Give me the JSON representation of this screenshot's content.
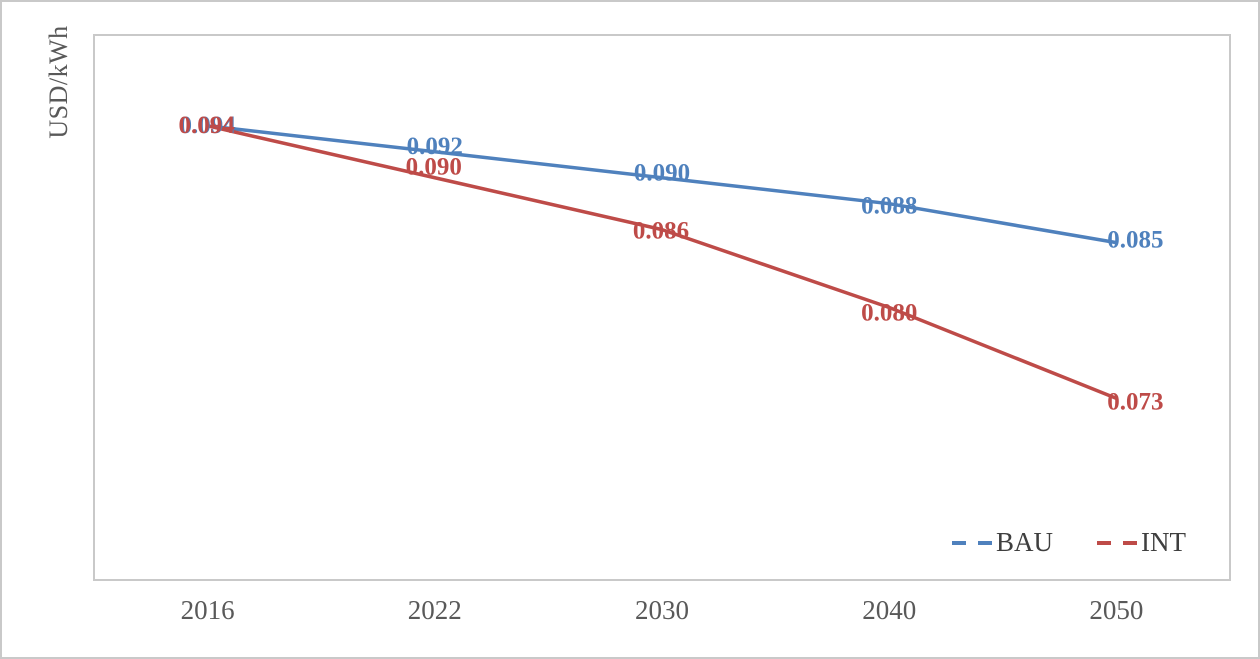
{
  "chart_data": {
    "type": "line",
    "title": "",
    "ylabel": "USD/kWh",
    "xlabel": "",
    "categories": [
      "2016",
      "2022",
      "2030",
      "2040",
      "2050"
    ],
    "series": [
      {
        "name": "BAU",
        "color": "#4f81bd",
        "values": [
          0.094,
          0.092,
          0.09,
          0.088,
          0.085
        ],
        "labels": [
          "0.094",
          "0.092",
          "0.090",
          "0.088",
          "0.085"
        ],
        "label_offsets": [
          [
            0,
            -2
          ],
          [
            0,
            -7
          ],
          [
            0,
            -6
          ],
          [
            0,
            1
          ],
          [
            19,
            -4
          ]
        ]
      },
      {
        "name": "INT",
        "color": "#be4b48",
        "values": [
          0.094,
          0.09,
          0.086,
          0.08,
          0.073
        ],
        "labels": [
          "0.094",
          "0.090",
          "0.086",
          "0.080",
          "0.073"
        ],
        "label_offsets": [
          [
            -1,
            -2
          ],
          [
            -1,
            -12
          ],
          [
            -1,
            0
          ],
          [
            0,
            4
          ],
          [
            19,
            2
          ]
        ]
      }
    ],
    "ylim": [
      0.059,
      0.101
    ],
    "grid": false,
    "gridlines": "none",
    "legend_position": "inside-bottom-right",
    "axis_text_color": "#595959",
    "legend_text_color": "#3f3f3f",
    "plot_border_color": "#c9c9c9",
    "data_label_style": "bold, series color, centered on point"
  }
}
